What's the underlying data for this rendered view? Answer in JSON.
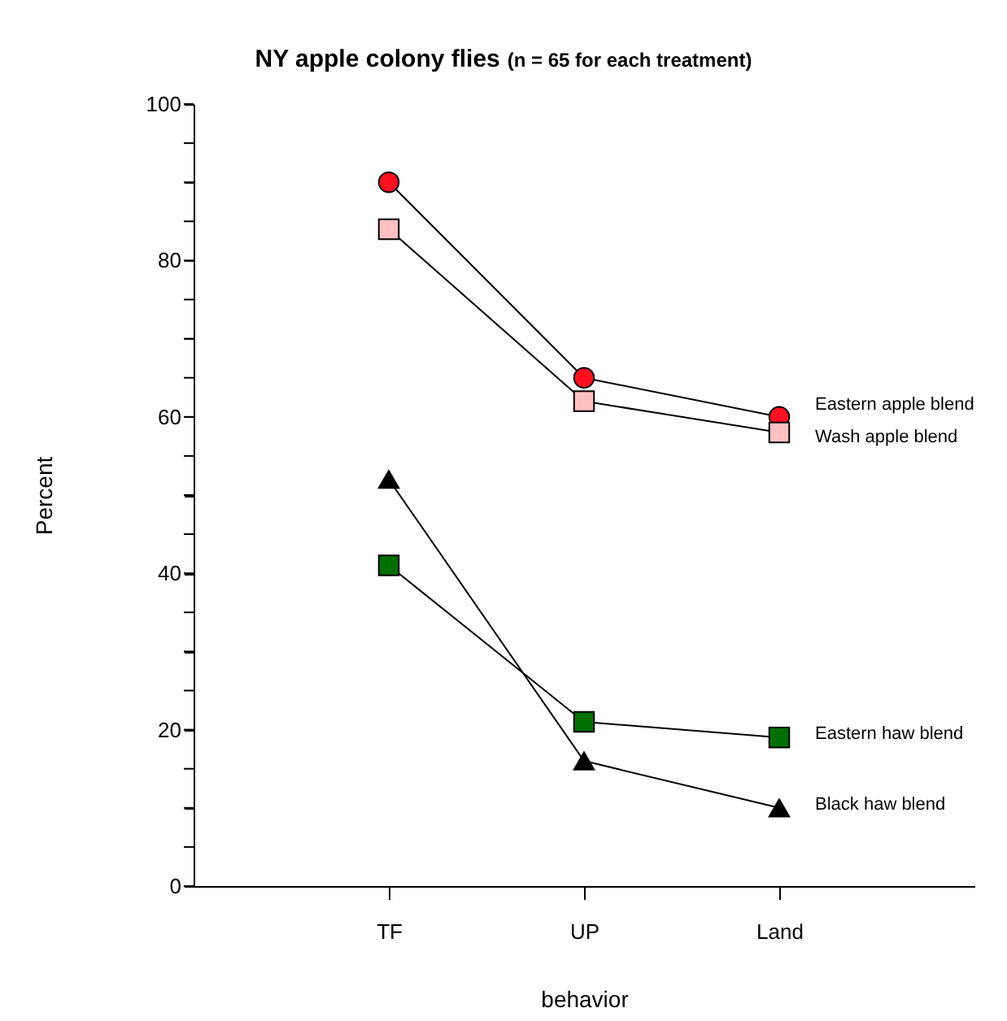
{
  "chart_data": {
    "type": "line",
    "title": "NY apple colony flies",
    "subtitle": "(n = 65 for each treatment)",
    "xlabel": "behavior",
    "ylabel": "Percent",
    "categories": [
      "TF",
      "UP",
      "Land"
    ],
    "series": [
      {
        "name": "Eastern apple blend",
        "color": "#ff0f1f",
        "marker": "circle",
        "values": [
          90,
          65,
          60
        ]
      },
      {
        "name": "Wash apple blend",
        "color": "#ffc0c0",
        "marker": "square",
        "values": [
          84,
          62,
          58
        ]
      },
      {
        "name": "Eastern haw blend",
        "color": "#007000",
        "marker": "square",
        "values": [
          41,
          21,
          19
        ]
      },
      {
        "name": "Black haw blend",
        "color": "#000000",
        "marker": "triangle",
        "values": [
          52,
          16,
          10
        ]
      }
    ],
    "ylim": [
      0,
      100
    ],
    "yticks": [
      0,
      {
        "value": 5,
        "label": null
      },
      {
        "value": 10,
        "label": null
      },
      {
        "value": 15,
        "label": null
      },
      20,
      {
        "value": 25,
        "label": null
      },
      {
        "value": 30,
        "label": null
      },
      {
        "value": 35,
        "label": null
      },
      40,
      {
        "value": 45,
        "label": null
      },
      {
        "value": 50,
        "label": null
      },
      {
        "value": 55,
        "label": null
      },
      60,
      {
        "value": 65,
        "label": null
      },
      {
        "value": 70,
        "label": null
      },
      {
        "value": 75,
        "label": null
      },
      80,
      {
        "value": 85,
        "label": null
      },
      {
        "value": 90,
        "label": null
      },
      {
        "value": 95,
        "label": null
      },
      100
    ],
    "grid": false,
    "legend": false,
    "line_style": "solid"
  }
}
